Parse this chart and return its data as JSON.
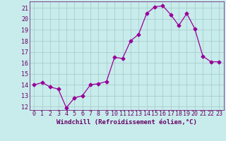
{
  "x": [
    0,
    1,
    2,
    3,
    4,
    5,
    6,
    7,
    8,
    9,
    10,
    11,
    12,
    13,
    14,
    15,
    16,
    17,
    18,
    19,
    20,
    21,
    22,
    23
  ],
  "y": [
    14.0,
    14.2,
    13.8,
    13.6,
    11.9,
    12.8,
    13.0,
    14.0,
    14.1,
    14.3,
    16.5,
    16.4,
    18.0,
    18.6,
    20.5,
    21.1,
    21.2,
    20.4,
    19.4,
    20.5,
    19.1,
    16.6,
    16.1,
    16.1
  ],
  "line_color": "#990099",
  "marker": "D",
  "marker_size": 2.5,
  "bg_color": "#c8ecec",
  "grid_color": "#aacccc",
  "xlabel": "Windchill (Refroidissement éolien,°C)",
  "ylim": [
    11.7,
    21.6
  ],
  "yticks": [
    12,
    13,
    14,
    15,
    16,
    17,
    18,
    19,
    20,
    21
  ],
  "xticks": [
    0,
    1,
    2,
    3,
    4,
    5,
    6,
    7,
    8,
    9,
    10,
    11,
    12,
    13,
    14,
    15,
    16,
    17,
    18,
    19,
    20,
    21,
    22,
    23
  ],
  "tick_color": "#660066",
  "label_fontsize": 6.5,
  "tick_fontsize": 6.0,
  "line_width": 0.9
}
